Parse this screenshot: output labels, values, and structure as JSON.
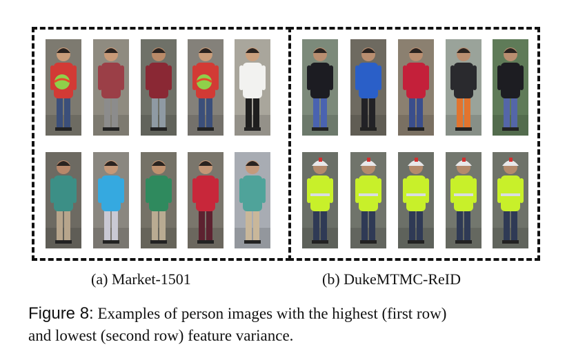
{
  "subfigures": [
    {
      "caption": "(a) Market-1501",
      "rows": [
        [
          {
            "bg": "#7d7a70",
            "skin": "#c99d7a",
            "top": "#d23a35",
            "bottom": "#3b4f7a",
            "extra": "ball"
          },
          {
            "bg": "#8f8b80",
            "skin": "#c89a78",
            "top": "#9b3f47",
            "bottom": "#8c8c8c"
          },
          {
            "bg": "#6f7168",
            "skin": "#b98a68",
            "top": "#8a2834",
            "bottom": "#8f9aa3"
          },
          {
            "bg": "#84817a",
            "skin": "#c99d7a",
            "top": "#d23a35",
            "bottom": "#3b4f7a",
            "extra": "ball"
          },
          {
            "bg": "#a9a69c",
            "skin": "#caa07e",
            "top": "#f2f2f0",
            "bottom": "#1e1e1e"
          }
        ],
        [
          {
            "bg": "#6d6a62",
            "skin": "#b8876a",
            "top": "#3c8f86",
            "bottom": "#b7a58c"
          },
          {
            "bg": "#8a8780",
            "skin": "#c59878",
            "top": "#35a9e0",
            "bottom": "#c9c9d4"
          },
          {
            "bg": "#757267",
            "skin": "#bf916f",
            "top": "#2f8a5e",
            "bottom": "#b9ab92"
          },
          {
            "bg": "#7a766c",
            "skin": "#c49676",
            "top": "#c8273a",
            "bottom": "#5d2230"
          },
          {
            "bg": "#a8acb3",
            "skin": "#c49a7c",
            "top": "#4fa39a",
            "bottom": "#c9b79a"
          }
        ]
      ]
    },
    {
      "caption": "(b) DukeMTMC-ReID",
      "rows": [
        [
          {
            "bg": "#7c8a7a",
            "skin": "#b98e70",
            "top": "#1c1c22",
            "bottom": "#4a63b0"
          },
          {
            "bg": "#6e6a60",
            "skin": "#b98e70",
            "top": "#2a5fc8",
            "bottom": "#222226"
          },
          {
            "bg": "#8b8070",
            "skin": "#b98e70",
            "top": "#c4203a",
            "bottom": "#3a4e8c"
          },
          {
            "bg": "#9aa39a",
            "skin": "#b98e70",
            "top": "#2a2a2e",
            "bottom": "#e2742e"
          },
          {
            "bg": "#5f7b58",
            "skin": "#b98e70",
            "top": "#1d1d22",
            "bottom": "#5466a8"
          }
        ],
        [
          {
            "bg": "#6a6f67",
            "skin": "#b48a6c",
            "top": "#c8f02a",
            "bottom": "#2f3a55",
            "extra": "helmet"
          },
          {
            "bg": "#70746b",
            "skin": "#b48a6c",
            "top": "#c8f02a",
            "bottom": "#2f3a55",
            "extra": "helmet"
          },
          {
            "bg": "#6c7068",
            "skin": "#b48a6c",
            "top": "#c8f02a",
            "bottom": "#2f3a55",
            "extra": "helmet"
          },
          {
            "bg": "#73776e",
            "skin": "#b48a6c",
            "top": "#c8f02a",
            "bottom": "#2f3a55",
            "extra": "helmet"
          },
          {
            "bg": "#6e7269",
            "skin": "#b48a6c",
            "top": "#c8f02a",
            "bottom": "#2f3a55",
            "extra": "helmet"
          }
        ]
      ]
    }
  ],
  "figure_caption": {
    "label": "Figure 8:",
    "line1": "Examples of person images with the highest (first row)",
    "line2": "and lowest (second row) feature variance."
  }
}
